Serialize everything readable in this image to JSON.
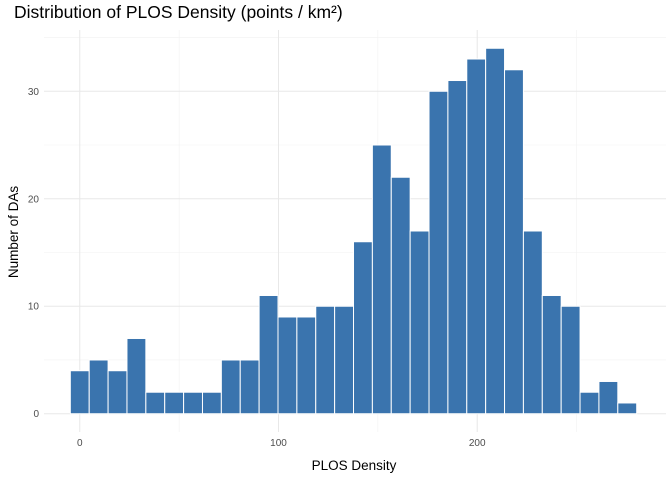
{
  "chart_data": {
    "type": "bar",
    "title": "Distribution of PLOS Density (points / km²)",
    "xlabel": "PLOS Density",
    "ylabel": "Number of DAs",
    "bar_color": "#3a74ae",
    "grid": true,
    "xlim": [
      -18,
      295
    ],
    "ylim": [
      -1.7,
      35.7
    ],
    "x_ticks": [
      0,
      100,
      200
    ],
    "y_ticks": [
      0,
      10,
      20,
      30
    ],
    "bin_width": 9.5,
    "bins": [
      {
        "x": 0,
        "count": 4
      },
      {
        "x": 9.5,
        "count": 5
      },
      {
        "x": 19,
        "count": 4
      },
      {
        "x": 28.5,
        "count": 7
      },
      {
        "x": 38,
        "count": 2
      },
      {
        "x": 47.5,
        "count": 2
      },
      {
        "x": 57,
        "count": 2
      },
      {
        "x": 66.5,
        "count": 2
      },
      {
        "x": 76,
        "count": 5
      },
      {
        "x": 85.5,
        "count": 5
      },
      {
        "x": 95,
        "count": 11
      },
      {
        "x": 104.5,
        "count": 9
      },
      {
        "x": 114,
        "count": 9
      },
      {
        "x": 123.5,
        "count": 10
      },
      {
        "x": 133,
        "count": 10
      },
      {
        "x": 142.5,
        "count": 16
      },
      {
        "x": 152,
        "count": 25
      },
      {
        "x": 161.5,
        "count": 22
      },
      {
        "x": 171,
        "count": 17
      },
      {
        "x": 180.5,
        "count": 30
      },
      {
        "x": 190,
        "count": 31
      },
      {
        "x": 199.5,
        "count": 33
      },
      {
        "x": 209,
        "count": 34
      },
      {
        "x": 218.5,
        "count": 32
      },
      {
        "x": 228,
        "count": 17
      },
      {
        "x": 237.5,
        "count": 11
      },
      {
        "x": 247,
        "count": 10
      },
      {
        "x": 256.5,
        "count": 2
      },
      {
        "x": 266,
        "count": 3
      },
      {
        "x": 275.5,
        "count": 1
      }
    ]
  }
}
